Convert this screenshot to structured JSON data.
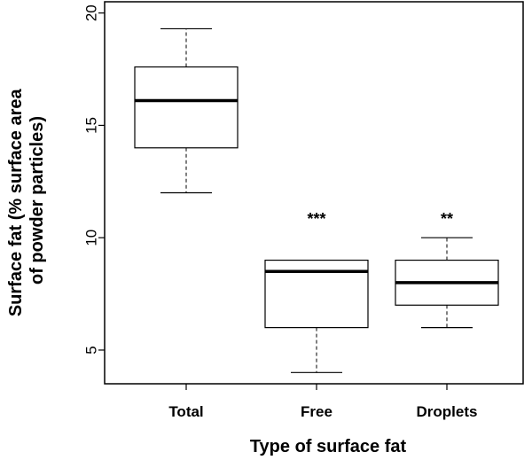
{
  "chart_data": {
    "type": "box",
    "title": "",
    "xlabel": "Type of surface fat",
    "ylabel_lines": [
      "Surface fat (% surface area",
      "of powder particles)"
    ],
    "ylim": [
      3.5,
      20.5
    ],
    "yticks": [
      5,
      10,
      15,
      20
    ],
    "categories": [
      "Total",
      "Free",
      "Droplets"
    ],
    "boxes": [
      {
        "category": "Total",
        "min": 12.0,
        "q1": 14.0,
        "median": 16.1,
        "q3": 17.6,
        "max": 19.3,
        "significance": ""
      },
      {
        "category": "Free",
        "min": 4.0,
        "q1": 6.0,
        "median": 8.5,
        "q3": 9.0,
        "max": 9.0,
        "significance": "***"
      },
      {
        "category": "Droplets",
        "min": 6.0,
        "q1": 7.0,
        "median": 8.0,
        "q3": 9.0,
        "max": 10.0,
        "significance": "**"
      }
    ],
    "grid": false,
    "legend": "none"
  }
}
